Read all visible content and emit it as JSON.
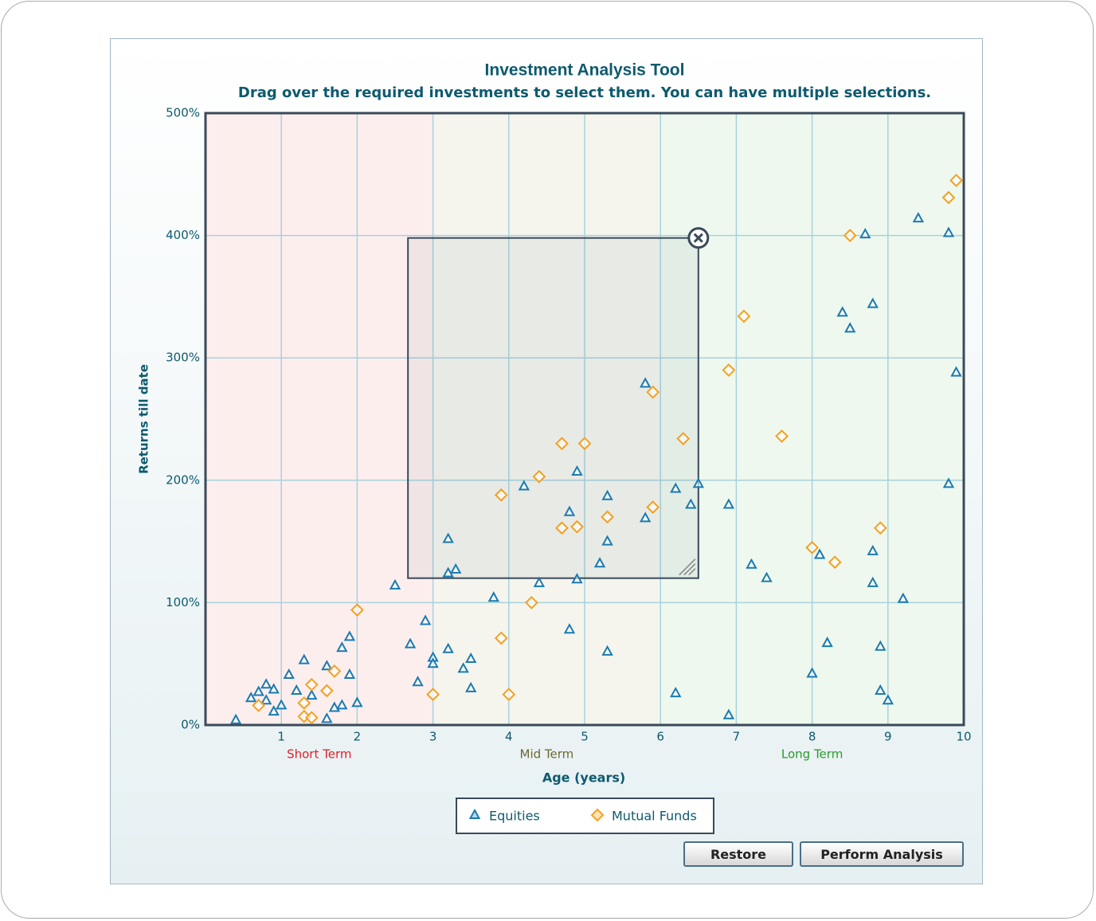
{
  "chart_data": {
    "type": "scatter",
    "title": "Investment Analysis Tool",
    "subtitle": "Drag over the required investments to select them. You can have multiple selections.",
    "x_label": "Age (years)",
    "y_label": "Returns till date",
    "xlim": [
      0,
      10
    ],
    "ylim": [
      0,
      500
    ],
    "xticks": [
      1,
      2,
      3,
      4,
      5,
      6,
      7,
      8,
      9,
      10
    ],
    "yticks": [
      {
        "value": 0,
        "label": "0%"
      },
      {
        "value": 100,
        "label": "100%"
      },
      {
        "value": 200,
        "label": "200%"
      },
      {
        "value": 300,
        "label": "300%"
      },
      {
        "value": 400,
        "label": "400%"
      },
      {
        "value": 500,
        "label": "500%"
      }
    ],
    "grid": true,
    "zones": [
      {
        "label": "Short Term",
        "range": [
          0,
          3
        ],
        "color": "#fdeeee",
        "label_color": "#e0202a"
      },
      {
        "label": "Mid Term",
        "range": [
          3,
          6
        ],
        "color": "#f5f5ee",
        "label_color": "#6a6a30"
      },
      {
        "label": "Long Term",
        "range": [
          6,
          10
        ],
        "color": "#eef8ee",
        "label_color": "#2a9a2a"
      }
    ],
    "selection": {
      "xlim": [
        2.67,
        6.5
      ],
      "ylim": [
        120,
        398
      ]
    },
    "series": [
      {
        "name": "Equities",
        "color": "#1a7ab0",
        "marker": "triangle",
        "x": [
          0.4,
          0.6,
          0.7,
          0.8,
          0.8,
          0.9,
          0.9,
          1.0,
          1.1,
          1.2,
          1.3,
          1.4,
          1.6,
          1.6,
          1.7,
          1.8,
          1.8,
          1.9,
          1.9,
          2.0,
          2.5,
          2.7,
          2.8,
          2.9,
          3.0,
          3.0,
          3.2,
          3.2,
          3.2,
          3.3,
          3.4,
          3.5,
          3.5,
          3.8,
          4.2,
          4.4,
          4.8,
          4.8,
          4.9,
          4.9,
          5.2,
          5.3,
          5.3,
          5.3,
          5.8,
          5.8,
          6.2,
          6.2,
          6.4,
          6.5,
          6.9,
          6.9,
          7.2,
          7.4,
          8.0,
          8.1,
          8.2,
          8.4,
          8.5,
          8.7,
          8.8,
          8.8,
          8.8,
          8.9,
          8.9,
          9.0,
          9.2,
          9.4,
          9.8,
          9.8,
          9.9
        ],
        "values": [
          4,
          22,
          27,
          33,
          20,
          29,
          11,
          16,
          41,
          28,
          53,
          24,
          48,
          5,
          14,
          63,
          16,
          72,
          41,
          18,
          114,
          66,
          35,
          85,
          55,
          50,
          62,
          152,
          124,
          127,
          46,
          54,
          30,
          104,
          195,
          116,
          174,
          78,
          207,
          119,
          132,
          187,
          150,
          60,
          279,
          169,
          193,
          26,
          180,
          197,
          180,
          8,
          131,
          120,
          42,
          139,
          67,
          337,
          324,
          401,
          344,
          142,
          116,
          64,
          28,
          20,
          103,
          414,
          402,
          197,
          288
        ]
      },
      {
        "name": "Mutual Funds",
        "color": "#f5a020",
        "marker": "diamond",
        "x": [
          0.7,
          1.3,
          1.3,
          1.4,
          1.4,
          1.6,
          1.7,
          2.0,
          3.0,
          3.9,
          3.9,
          4.0,
          4.3,
          4.4,
          4.7,
          4.7,
          4.9,
          5.0,
          5.3,
          5.9,
          5.9,
          6.3,
          6.9,
          7.1,
          7.6,
          8.0,
          8.3,
          8.5,
          8.9,
          9.8,
          9.9
        ],
        "values": [
          16,
          18,
          7,
          33,
          6,
          28,
          44,
          94,
          25,
          188,
          71,
          25,
          100,
          203,
          230,
          161,
          162,
          230,
          170,
          272,
          178,
          234,
          290,
          334,
          236,
          145,
          133,
          400,
          161,
          431,
          445
        ]
      }
    ]
  },
  "buttons": [
    "Restore",
    "Perform Analysis"
  ]
}
